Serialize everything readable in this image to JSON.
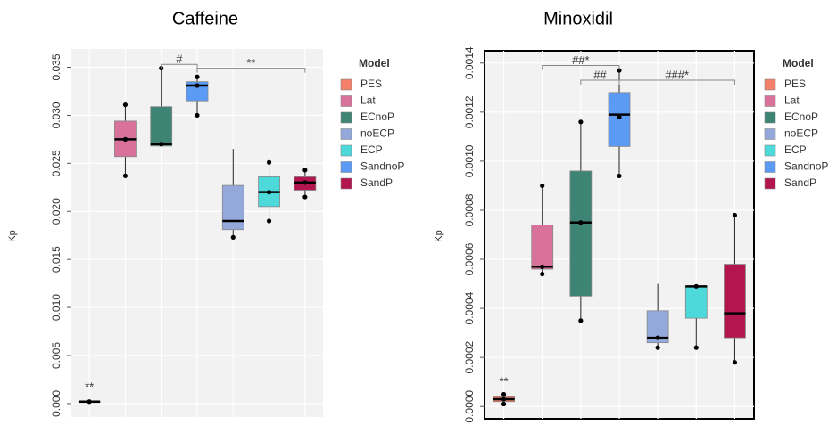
{
  "chart_data": [
    {
      "type": "box",
      "title": "Caffeine",
      "ylabel": "Kp",
      "ylim": [
        -0.0014,
        0.0369
      ],
      "yticks": [
        {
          "value": 0,
          "label": "0.000"
        },
        {
          "value": 0.005,
          "label": "0.005"
        },
        {
          "value": 0.01,
          "label": "0.010"
        },
        {
          "value": 0.015,
          "label": "0.015"
        },
        {
          "value": 0.02,
          "label": "0.020"
        },
        {
          "value": 0.025,
          "label": "0.025"
        },
        {
          "value": 0.03,
          "label": "0.030"
        },
        {
          "value": 0.035,
          "label": "0.035"
        }
      ],
      "xlim": [
        0.5,
        7.5
      ],
      "grid": true,
      "frame": false,
      "legend": {
        "title": "Model",
        "position": "right"
      },
      "series": [
        {
          "name": "PES",
          "color": "#f4806b",
          "x": 1,
          "min": 0.0001,
          "q1": 0.0001,
          "median": 0.0002,
          "q3": 0.0002,
          "max": 0.0003,
          "points": [
            0.0002
          ]
        },
        {
          "name": "Lat",
          "color": "#d9729a",
          "x": 2,
          "min": 0.0237,
          "q1": 0.0257,
          "median": 0.0275,
          "q3": 0.0294,
          "max": 0.0311,
          "points": [
            0.0311,
            0.0275,
            0.0237
          ]
        },
        {
          "name": "ECnoP",
          "color": "#3d8474",
          "x": 3,
          "min": 0.0268,
          "q1": 0.0268,
          "median": 0.027,
          "q3": 0.0309,
          "max": 0.0349,
          "points": [
            0.0349,
            0.027
          ]
        },
        {
          "name": "noECP",
          "color": "#93a9dc",
          "x": 5,
          "min": 0.0173,
          "q1": 0.0181,
          "median": 0.019,
          "q3": 0.0227,
          "max": 0.0265,
          "points": [
            0.0173
          ]
        },
        {
          "name": "ECP",
          "color": "#4dd9d9",
          "x": 6,
          "min": 0.019,
          "q1": 0.0205,
          "median": 0.022,
          "q3": 0.0236,
          "max": 0.0251,
          "points": [
            0.0251,
            0.022,
            0.019
          ]
        },
        {
          "name": "SandnoP",
          "color": "#5b9bf5",
          "x": 4,
          "min": 0.03,
          "q1": 0.0315,
          "median": 0.0331,
          "q3": 0.0335,
          "max": 0.034,
          "points": [
            0.034,
            0.0331,
            0.03
          ]
        },
        {
          "name": "SandP",
          "color": "#b3164f",
          "x": 7,
          "min": 0.0215,
          "q1": 0.0222,
          "median": 0.023,
          "q3": 0.0236,
          "max": 0.0243,
          "points": [
            0.0243,
            0.023,
            0.0215
          ]
        }
      ],
      "annotations": [
        {
          "text": "**",
          "from": 1,
          "to": 1,
          "y": 0.0012
        },
        {
          "text": "#",
          "from": 3,
          "to": 4,
          "y": 0.0353
        },
        {
          "text": "**",
          "from": 4,
          "to": 7,
          "y": 0.0349
        }
      ]
    },
    {
      "type": "box",
      "title": "Minoxidil",
      "ylabel": "Kp",
      "ylim": [
        -5e-05,
        0.00145
      ],
      "yticks": [
        {
          "value": 0,
          "label": "0.0000"
        },
        {
          "value": 0.0002,
          "label": "0.0002"
        },
        {
          "value": 0.0004,
          "label": "0.0004"
        },
        {
          "value": 0.0006,
          "label": "0.0006"
        },
        {
          "value": 0.0008,
          "label": "0.0008"
        },
        {
          "value": 0.001,
          "label": "0.0010"
        },
        {
          "value": 0.0012,
          "label": "0.0012"
        },
        {
          "value": 0.0014,
          "label": "0.0014"
        }
      ],
      "xlim": [
        0.5,
        7.5
      ],
      "grid": true,
      "frame": true,
      "legend": {
        "title": "Model",
        "position": "right"
      },
      "series": [
        {
          "name": "PES",
          "color": "#f4806b",
          "x": 1,
          "min": 1e-05,
          "q1": 2e-05,
          "median": 3e-05,
          "q3": 4e-05,
          "max": 5e-05,
          "points": [
            5e-05,
            3e-05,
            1e-05
          ]
        },
        {
          "name": "Lat",
          "color": "#d9729a",
          "x": 2,
          "min": 0.00054,
          "q1": 0.00056,
          "median": 0.00057,
          "q3": 0.00074,
          "max": 0.0009,
          "points": [
            0.0009,
            0.00057,
            0.00054
          ]
        },
        {
          "name": "ECnoP",
          "color": "#3d8474",
          "x": 3,
          "min": 0.00035,
          "q1": 0.00045,
          "median": 0.00075,
          "q3": 0.00096,
          "max": 0.00116,
          "points": [
            0.00116,
            0.00075,
            0.00035
          ]
        },
        {
          "name": "noECP",
          "color": "#93a9dc",
          "x": 5,
          "min": 0.00024,
          "q1": 0.00026,
          "median": 0.00028,
          "q3": 0.00039,
          "max": 0.0005,
          "points": [
            0.00024,
            0.00028
          ]
        },
        {
          "name": "ECP",
          "color": "#4dd9d9",
          "x": 6,
          "min": 0.00024,
          "q1": 0.00036,
          "median": 0.00049,
          "q3": 0.00049,
          "max": 0.00049,
          "points": [
            0.00049,
            0.00024
          ]
        },
        {
          "name": "SandnoP",
          "color": "#5b9bf5",
          "x": 4,
          "min": 0.00094,
          "q1": 0.00106,
          "median": 0.00119,
          "q3": 0.00128,
          "max": 0.00138,
          "points": [
            0.00137,
            0.00118,
            0.00094
          ]
        },
        {
          "name": "SandP",
          "color": "#b3164f",
          "x": 7,
          "min": 0.00018,
          "q1": 0.00028,
          "median": 0.00038,
          "q3": 0.00058,
          "max": 0.00078,
          "points": [
            0.00078,
            0.00018
          ]
        }
      ],
      "annotations": [
        {
          "text": "**",
          "from": 1,
          "to": 1,
          "y": 8e-05
        },
        {
          "text": "##*",
          "from": 2,
          "to": 4,
          "y": 0.00139
        },
        {
          "text": "##",
          "from": 3,
          "to": 4,
          "y": 0.00133
        },
        {
          "text": "###*",
          "from": 4,
          "to": 7,
          "y": 0.00133
        }
      ]
    }
  ]
}
